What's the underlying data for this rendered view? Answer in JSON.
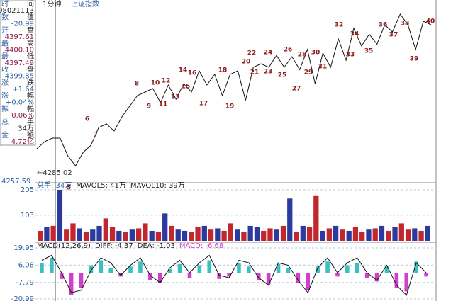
{
  "header": {
    "period": "1分钟",
    "symbol": "上证指数"
  },
  "info_panel": {
    "rows": [
      {
        "label": [
          "时",
          "间"
        ],
        "value": "08021113",
        "color": "#222222"
      },
      {
        "label": [
          "数",
          "值"
        ],
        "value": "-20.99",
        "color": "#2b5fa0"
      },
      {
        "label": [
          "开",
          "盘"
        ],
        "value": "4397.61",
        "color": "#8b1a4a"
      },
      {
        "label": [
          "最",
          "高"
        ],
        "value": "4400.10",
        "color": "#8b1a4a"
      },
      {
        "label": [
          "最",
          "低"
        ],
        "value": "4397.49",
        "color": "#8b1a4a"
      },
      {
        "label": [
          "收",
          "盘"
        ],
        "value": "4399.85",
        "color": "#2b5fa0"
      },
      {
        "label": [
          "涨",
          "跌"
        ],
        "value": "+1.64",
        "color": "#2b5fa0"
      },
      {
        "label": [
          "涨",
          "幅"
        ],
        "value": "+0.04%",
        "color": "#2b5fa0"
      },
      {
        "label": [
          "振",
          "幅"
        ],
        "value": "0.06%",
        "color": "#8b1a4a"
      },
      {
        "label": [
          "总",
          "手"
        ],
        "value": "34万",
        "color": "#222222"
      },
      {
        "label": [
          "金",
          "额"
        ],
        "value": "4.72亿",
        "color": "#8b1a4a"
      }
    ]
  },
  "chart_data": [
    {
      "type": "line",
      "color": "#111111",
      "ylim": [
        4257.59,
        4560
      ],
      "low_label": "←4285.02",
      "wave_labels": [
        "5",
        "6",
        "7",
        "8",
        "9",
        "10",
        "11",
        "12",
        "13",
        "14",
        "15",
        "16",
        "17",
        "18",
        "19",
        "20",
        "21",
        "22",
        "23",
        "24",
        "25",
        "26",
        "27",
        "28",
        "29",
        "30",
        "31",
        "32",
        "33",
        "34",
        "35",
        "36",
        "37",
        "38",
        "39",
        "40"
      ],
      "values": [
        4314,
        4326,
        4332,
        4332,
        4302,
        4285,
        4308,
        4320,
        4350,
        4356,
        4344,
        4368,
        4386,
        4404,
        4410,
        4416,
        4392,
        4422,
        4398,
        4424,
        4410,
        4446,
        4422,
        4440,
        4404,
        4440,
        4446,
        4396,
        4452,
        4458,
        4452,
        4472,
        4452,
        4470,
        4448,
        4482,
        4424,
        4476,
        4452,
        4500,
        4464,
        4518,
        4488,
        4508,
        4491,
        4524,
        4512,
        4542,
        4524,
        4482,
        4530,
        4524
      ]
    },
    {
      "type": "bar",
      "ylim": [
        0,
        205
      ],
      "yticks": [
        103,
        205
      ],
      "legend": [
        "总手: 34万",
        "MAVOL5: 41万",
        "MAVOL10: 39万"
      ],
      "values": [
        40,
        55,
        60,
        205,
        45,
        70,
        50,
        35,
        45,
        60,
        90,
        55,
        40,
        35,
        45,
        50,
        70,
        40,
        35,
        110,
        60,
        45,
        40,
        35,
        55,
        60,
        45,
        50,
        40,
        70,
        45,
        35,
        60,
        55,
        40,
        50,
        45,
        60,
        170,
        35,
        60,
        55,
        180,
        40,
        50,
        60,
        45,
        40,
        55,
        35,
        45,
        50,
        60,
        40,
        55,
        70,
        45,
        50,
        40,
        60
      ],
      "colors": [
        "#c0282d",
        "#2b3a9e",
        "#c0282d",
        "#2b3a9e",
        "#c0282d",
        "#c0282d",
        "#2b3a9e",
        "#c0282d",
        "#2b3a9e",
        "#2b3a9e",
        "#c0282d",
        "#c0282d",
        "#2b3a9e",
        "#c0282d",
        "#2b3a9e",
        "#c0282d",
        "#c0282d",
        "#2b3a9e",
        "#c0282d",
        "#2b3a9e",
        "#c0282d",
        "#2b3a9e",
        "#2b3a9e",
        "#c0282d",
        "#c0282d",
        "#2b3a9e",
        "#c0282d",
        "#2b3a9e",
        "#c0282d",
        "#c0282d",
        "#2b3a9e",
        "#c0282d",
        "#2b3a9e",
        "#2b3a9e",
        "#c0282d",
        "#c0282d",
        "#2b3a9e",
        "#c0282d",
        "#2b3a9e",
        "#c0282d",
        "#2b3a9e",
        "#c0282d",
        "#c0282d",
        "#2b3a9e",
        "#c0282d",
        "#2b3a9e",
        "#c0282d",
        "#2b3a9e",
        "#c0282d",
        "#c0282d",
        "#2b3a9e",
        "#c0282d",
        "#2b3a9e",
        "#c0282d",
        "#2b3a9e",
        "#c0282d",
        "#c0282d",
        "#2b3a9e",
        "#c0282d",
        "#2b3a9e"
      ]
    },
    {
      "type": "macd",
      "ylim": [
        -20.99,
        19.95
      ],
      "yticks": [
        -20.99,
        -7.79,
        6.08,
        19.95
      ],
      "legend": [
        "MACD(12,26,9)",
        "DIFF: -4.37",
        "DEA: -1.03",
        "MACD: -6.68"
      ],
      "pos_color": "#3cbfc0",
      "neg_color": "#d040c8",
      "line_color": "#111111",
      "values": [
        8,
        12,
        -5,
        -18,
        -12,
        6,
        10,
        4,
        -3,
        5,
        9,
        -6,
        -8,
        3,
        7,
        -4,
        6,
        10,
        -5,
        -3,
        8,
        5,
        -6,
        -10,
        7,
        4,
        -8,
        -14,
        5,
        9,
        -3,
        6,
        8,
        -4,
        -7,
        5,
        -12,
        -15,
        9,
        -3
      ],
      "diff": [
        10,
        14,
        0,
        -16,
        -14,
        2,
        12,
        8,
        -2,
        6,
        12,
        -2,
        -8,
        4,
        10,
        0,
        8,
        14,
        -2,
        -4,
        10,
        8,
        -4,
        -10,
        8,
        6,
        -6,
        -16,
        4,
        12,
        0,
        8,
        12,
        0,
        -6,
        6,
        -10,
        -18,
        8,
        0
      ]
    }
  ]
}
